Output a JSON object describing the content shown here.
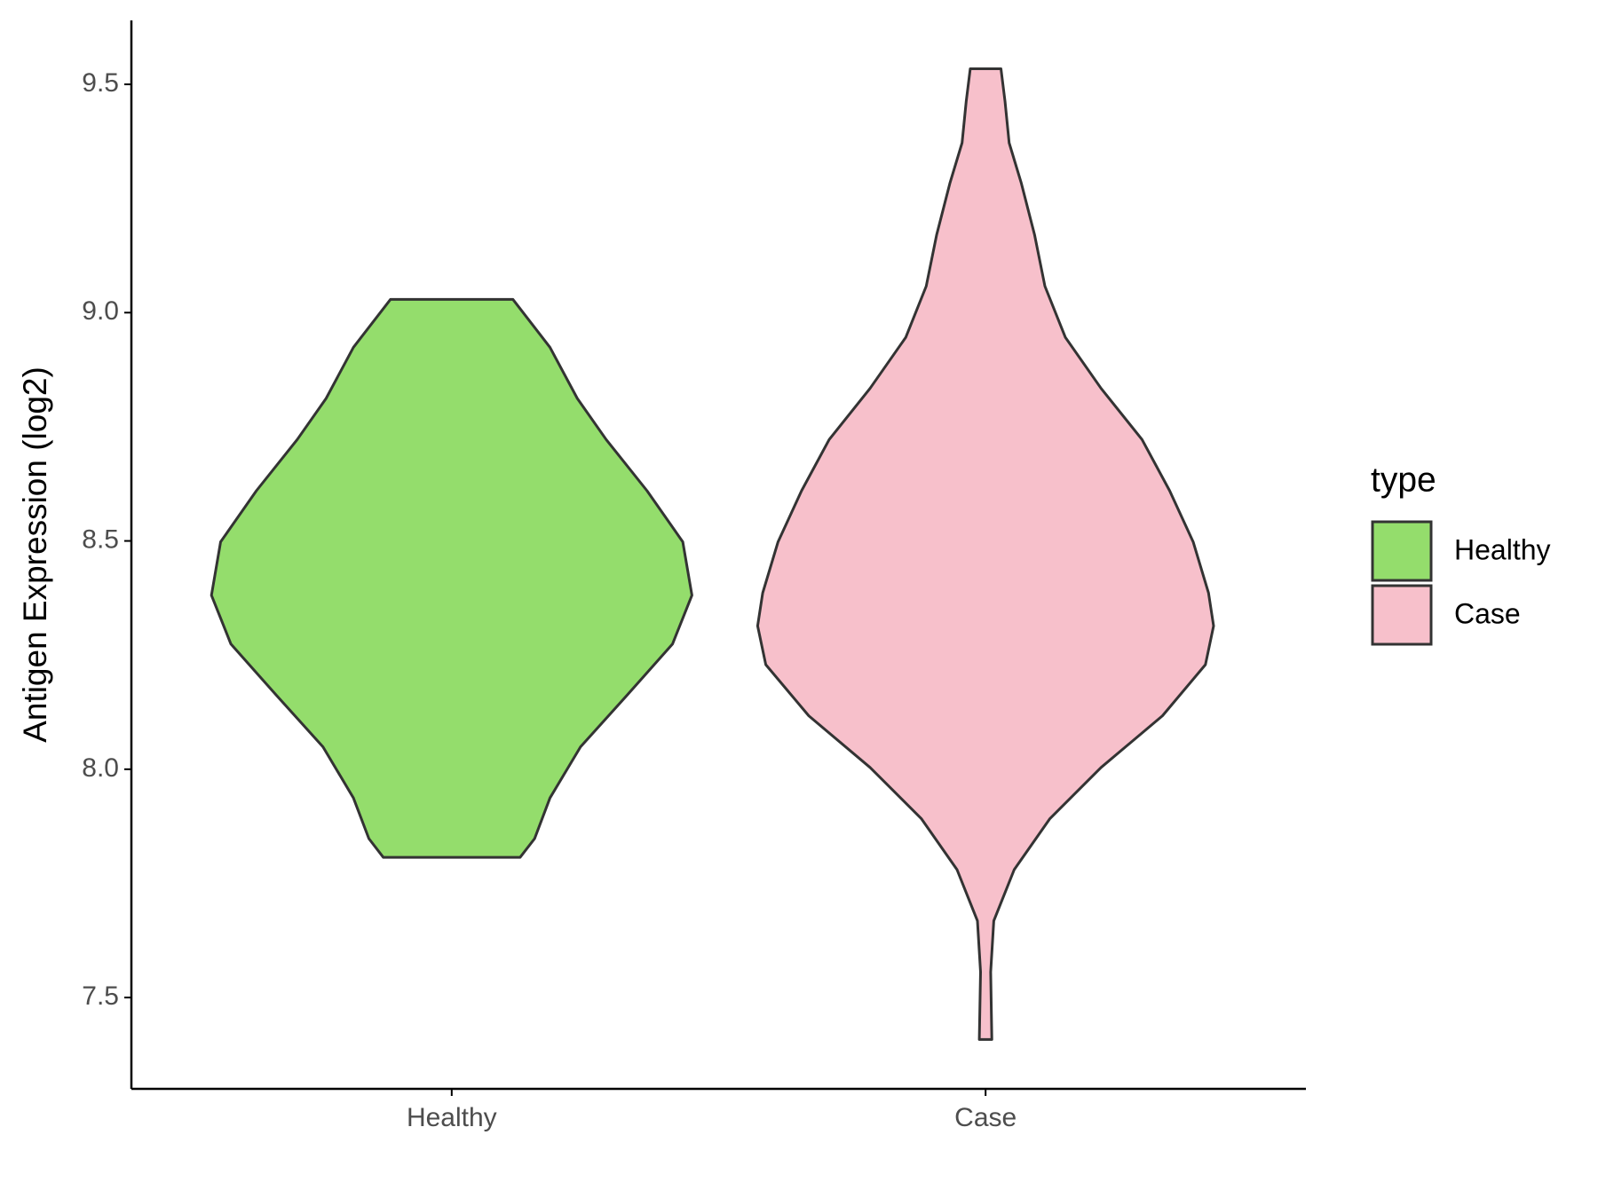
{
  "chart_data": {
    "type": "violin",
    "y_label": "Antigen Expression (log2)",
    "categories": [
      "Healthy",
      "Case"
    ],
    "ylim": [
      7.3,
      9.64
    ],
    "yticks": [
      7.5,
      {
        "value": 8.0,
        "label": "8.0"
      },
      8.5,
      {
        "value": 9.0,
        "label": "9.0"
      },
      9.5
    ],
    "legend_title": "type",
    "legend": "right",
    "series": [
      {
        "name": "Healthy",
        "color": "#94dd6c",
        "y": [
          9.029,
          8.924,
          8.812,
          8.722,
          8.61,
          8.498,
          8.381,
          8.274,
          8.161,
          8.049,
          7.937,
          7.848,
          7.807
        ],
        "density": [
          0.255,
          0.409,
          0.523,
          0.643,
          0.813,
          0.962,
          1.0,
          0.919,
          0.728,
          0.536,
          0.409,
          0.345,
          0.285
        ]
      },
      {
        "name": "Case",
        "color": "#f7c0cb",
        "y": [
          9.534,
          9.462,
          9.372,
          9.283,
          9.17,
          9.058,
          8.946,
          8.834,
          8.722,
          8.61,
          8.498,
          8.386,
          8.314,
          8.229,
          8.117,
          8.004,
          7.892,
          7.78,
          7.668,
          7.556,
          7.408
        ],
        "density": [
          0.064,
          0.081,
          0.098,
          0.149,
          0.204,
          0.247,
          0.332,
          0.481,
          0.651,
          0.766,
          0.864,
          0.928,
          0.949,
          0.915,
          0.736,
          0.481,
          0.268,
          0.119,
          0.034,
          0.021,
          0.026
        ]
      }
    ]
  }
}
